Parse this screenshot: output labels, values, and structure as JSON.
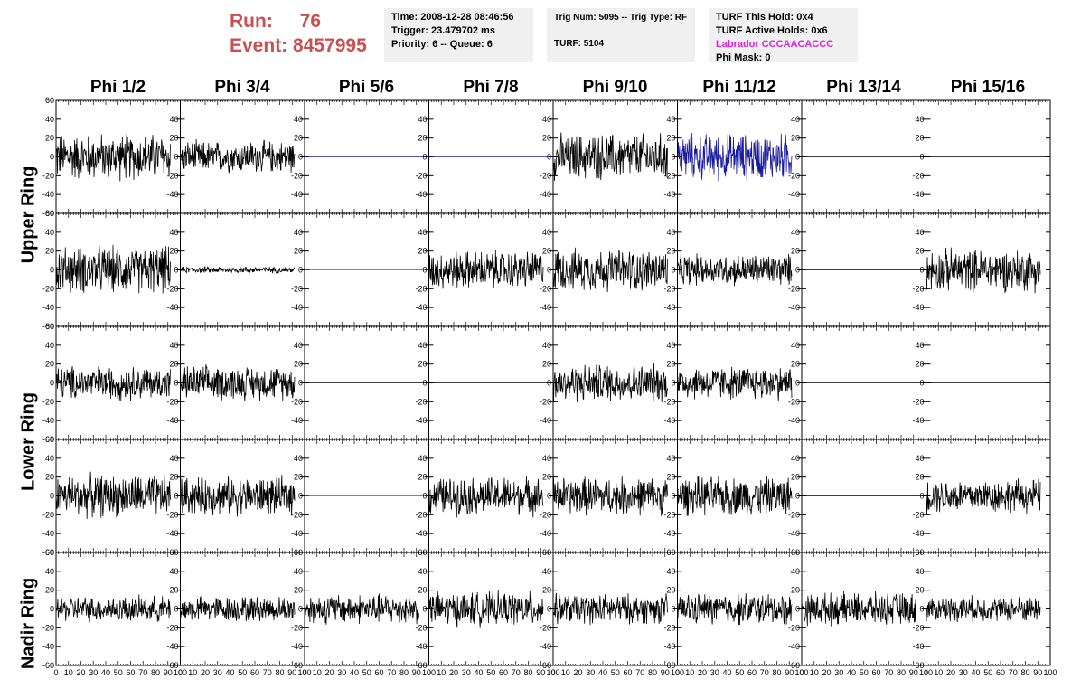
{
  "header": {
    "run_label": "Run:",
    "run_value": "76",
    "event_label": "Event:",
    "event_value": "8457995"
  },
  "info_boxes": {
    "time": "Time: 2008-12-28 08:46:56",
    "trigger": "Trigger: 23.479702 ms",
    "priority": "Priority: 6 -- Queue: 6",
    "trig_num": "Trig Num: 5095 -- Trig Type: RF",
    "turf": "TURF: 5104",
    "turf_hold": "TURF This Hold: 0x4",
    "turf_active": "TURF Active Holds: 0x6",
    "labrador": "Labrador CCCAACACCC",
    "phi_mask": "Phi Mask: 0"
  },
  "colors": {
    "run_red": "#c9504f",
    "labrador_magenta": "#e020e0",
    "trace_blue": "#1a1aa0",
    "trace_red": "#c03030"
  },
  "columns": [
    "Phi 1/2",
    "Phi 3/4",
    "Phi 5/6",
    "Phi 7/8",
    "Phi 9/10",
    "Phi 11/12",
    "Phi 13/14",
    "Phi 15/16"
  ],
  "rings": [
    "Upper Ring",
    "Lower Ring",
    "Nadir Ring"
  ],
  "chart_data": {
    "type": "line",
    "rows": 5,
    "cols": 8,
    "xlim": [
      0,
      100
    ],
    "ylim": [
      -60,
      60
    ],
    "x_ticks": [
      "0",
      "10",
      "20",
      "30",
      "40",
      "50",
      "60",
      "70",
      "80",
      "90",
      "100"
    ],
    "y_ticks": [
      "60",
      "40",
      "20",
      "0",
      "-20",
      "-40",
      "-60"
    ],
    "panels": [
      [
        {
          "amp": 22,
          "color": "black"
        },
        {
          "amp": 15,
          "color": "black"
        },
        {
          "amp": 0,
          "color": "blue"
        },
        {
          "amp": 0,
          "color": "blue"
        },
        {
          "amp": 22,
          "color": "black"
        },
        {
          "amp": 22,
          "color": "blue"
        },
        {
          "amp": 0,
          "color": "black"
        },
        {
          "amp": 0,
          "color": "black"
        }
      ],
      [
        {
          "amp": 22,
          "color": "black"
        },
        {
          "amp": 3,
          "color": "black"
        },
        {
          "amp": 0,
          "color": "red"
        },
        {
          "amp": 18,
          "color": "black"
        },
        {
          "amp": 20,
          "color": "black"
        },
        {
          "amp": 15,
          "color": "black"
        },
        {
          "amp": 0,
          "color": "black"
        },
        {
          "amp": 20,
          "color": "black"
        }
      ],
      [
        {
          "amp": 16,
          "color": "black"
        },
        {
          "amp": 16,
          "color": "black"
        },
        {
          "amp": 0,
          "color": "black"
        },
        {
          "amp": 0,
          "color": "black"
        },
        {
          "amp": 18,
          "color": "black"
        },
        {
          "amp": 16,
          "color": "black"
        },
        {
          "amp": 0,
          "color": "black"
        },
        {
          "amp": 0,
          "color": "black"
        }
      ],
      [
        {
          "amp": 20,
          "color": "black"
        },
        {
          "amp": 18,
          "color": "black"
        },
        {
          "amp": 0,
          "color": "red"
        },
        {
          "amp": 18,
          "color": "black"
        },
        {
          "amp": 18,
          "color": "black"
        },
        {
          "amp": 18,
          "color": "black"
        },
        {
          "amp": 0,
          "color": "black"
        },
        {
          "amp": 16,
          "color": "black"
        }
      ],
      [
        {
          "amp": 12,
          "color": "black"
        },
        {
          "amp": 12,
          "color": "black"
        },
        {
          "amp": 14,
          "color": "black"
        },
        {
          "amp": 16,
          "color": "black"
        },
        {
          "amp": 14,
          "color": "black"
        },
        {
          "amp": 15,
          "color": "black"
        },
        {
          "amp": 15,
          "color": "black"
        },
        {
          "amp": 12,
          "color": "black"
        }
      ]
    ]
  }
}
